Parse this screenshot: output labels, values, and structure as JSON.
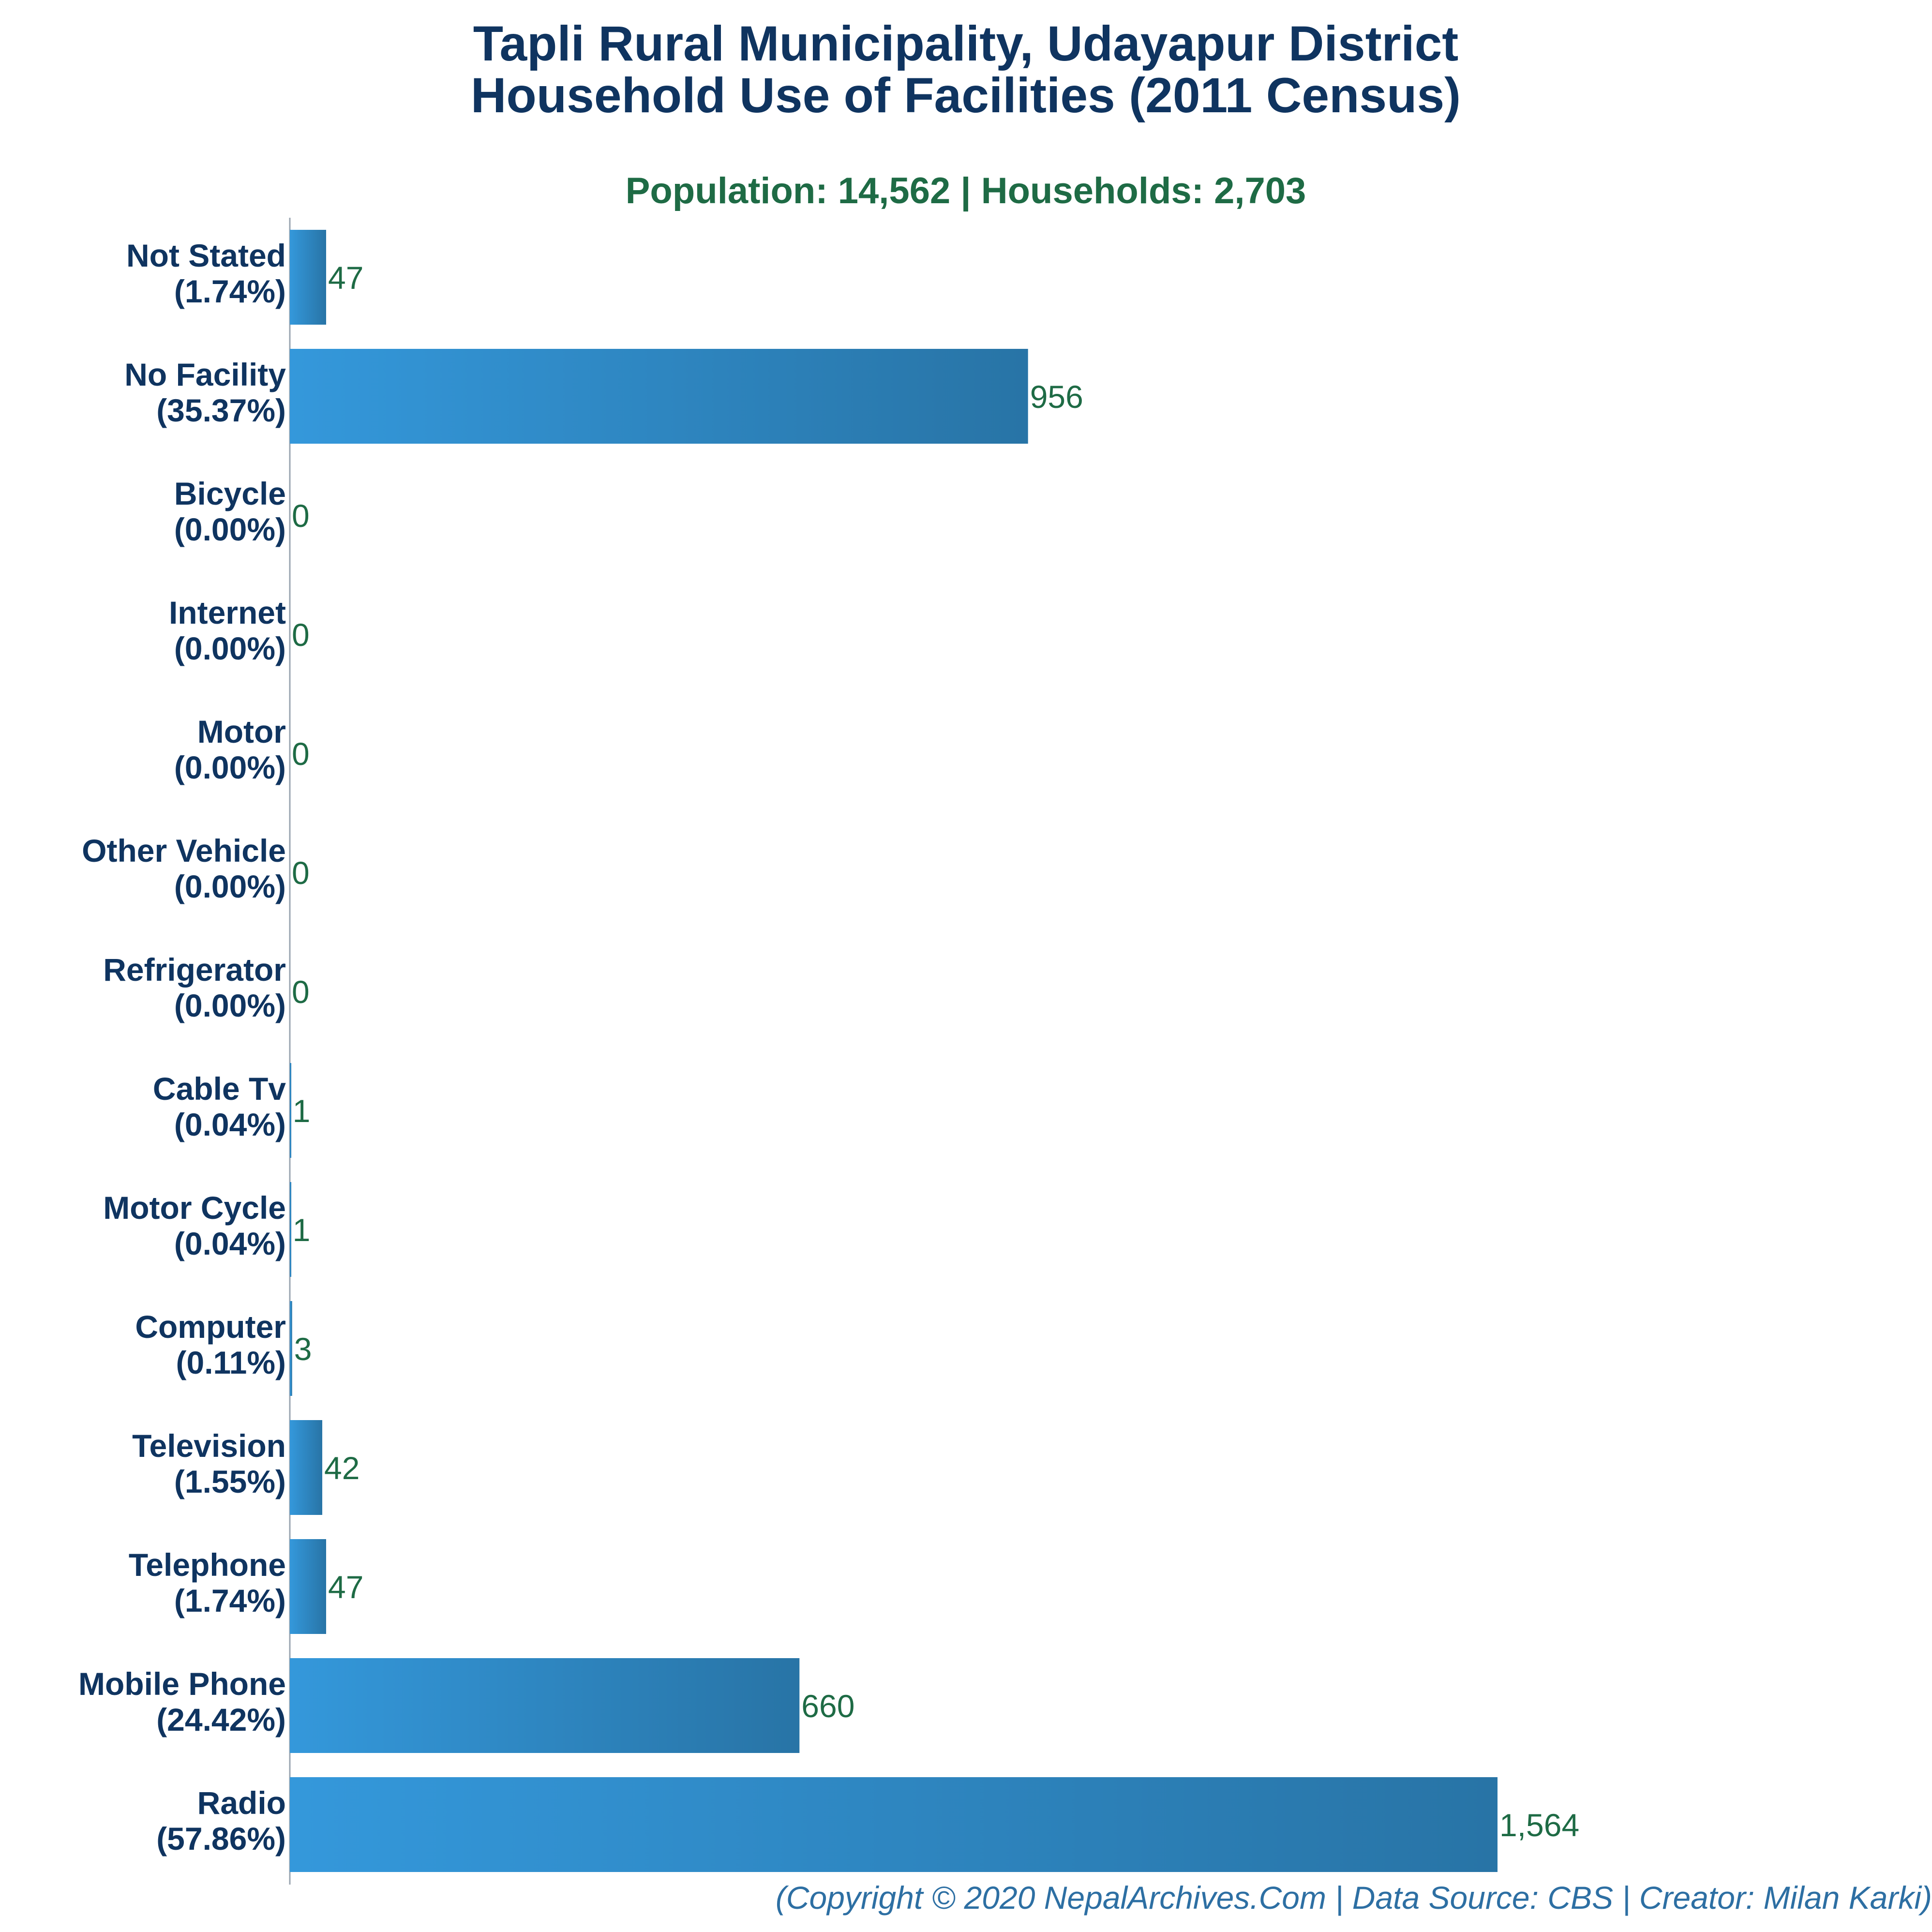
{
  "chart_data": {
    "type": "bar",
    "orientation": "horizontal",
    "title": "Tapli Rural Municipality, Udayapur District",
    "title_line2": "Household Use of Facilities (2011 Census)",
    "subtitle": "Population: 14,562 | Households: 2,703",
    "categories": [
      "Not Stated",
      "No Facility",
      "Bicycle",
      "Internet",
      "Motor",
      "Other Vehicle",
      "Refrigerator",
      "Cable Tv",
      "Motor Cycle",
      "Computer",
      "Television",
      "Telephone",
      "Mobile Phone",
      "Radio"
    ],
    "percent_labels": [
      "(1.74%)",
      "(35.37%)",
      "(0.00%)",
      "(0.00%)",
      "(0.00%)",
      "(0.00%)",
      "(0.00%)",
      "(0.04%)",
      "(0.04%)",
      "(0.11%)",
      "(1.55%)",
      "(1.74%)",
      "(24.42%)",
      "(57.86%)"
    ],
    "values": [
      47,
      956,
      0,
      0,
      0,
      0,
      0,
      1,
      1,
      3,
      42,
      47,
      660,
      1564
    ],
    "value_labels": [
      "47",
      "956",
      "0",
      "0",
      "0",
      "0",
      "0",
      "1",
      "1",
      "3",
      "42",
      "47",
      "660",
      "1,564"
    ],
    "xlim": [
      0,
      1564
    ],
    "grid": false,
    "legend": "none",
    "colors": {
      "bar_light": "#3498db",
      "bar_dark": "#2874a6",
      "title": "#0f3460",
      "subtitle": "#1e6b45",
      "value_label": "#1e6b45",
      "category_label": "#0f3460",
      "footer": "#2d6fa3",
      "axis": "#9aa5b1"
    }
  },
  "footer": "(Copyright © 2020 NepalArchives.Com | Data Source: CBS | Creator: Milan Karki)"
}
